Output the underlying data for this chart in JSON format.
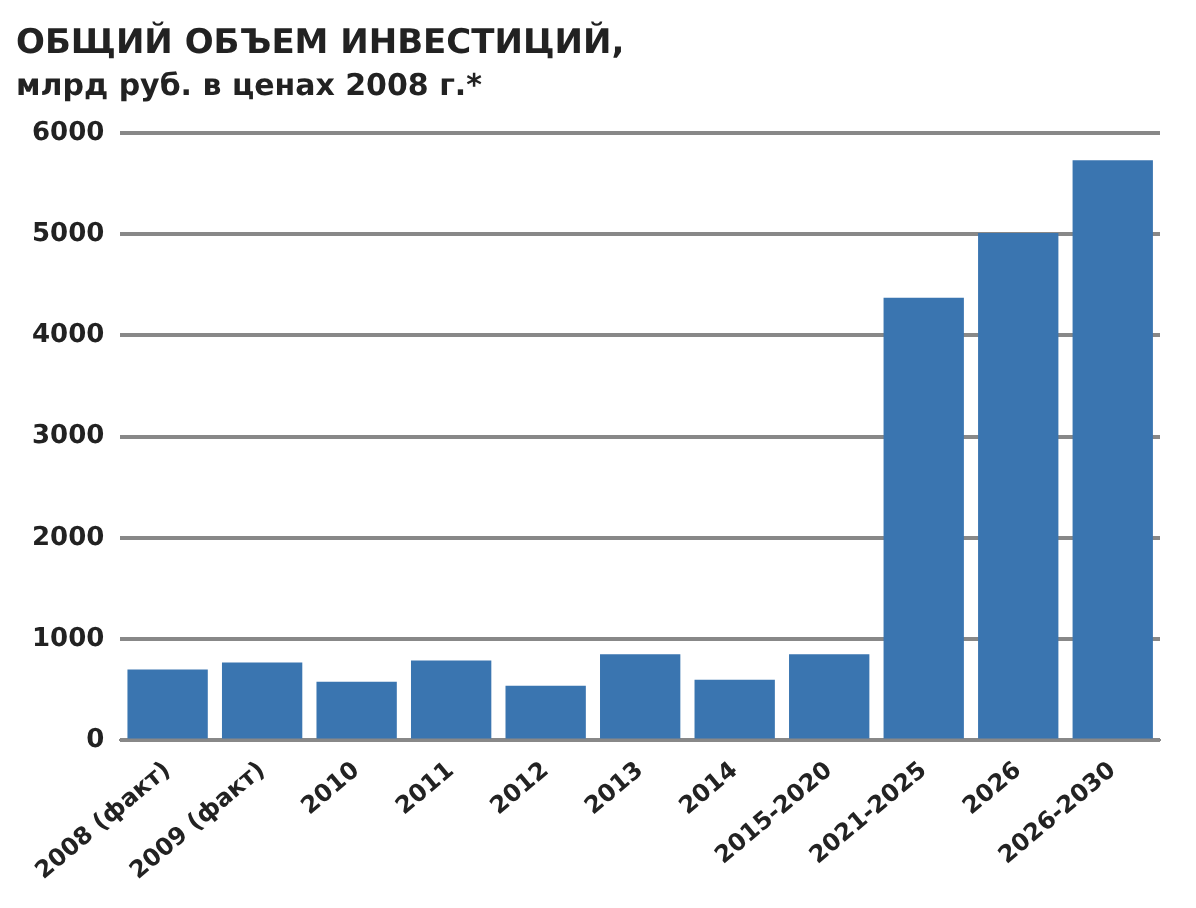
{
  "chart_data": {
    "type": "bar",
    "title": "ОБЩИЙ ОБЪЕМ ИНВЕСТИЦИЙ,",
    "subtitle": "млрд руб. в ценах 2008 г.*",
    "categories": [
      "2008 (факт)",
      "2009 (факт)",
      "2010",
      "2011",
      "2012",
      "2013",
      "2014",
      "2015-2020",
      "2021-2025",
      "2026",
      "2026-2030"
    ],
    "values": [
      700,
      770,
      580,
      790,
      540,
      850,
      600,
      850,
      4370,
      5010,
      5730
    ],
    "color": "#3a75b0",
    "ylim": [
      0,
      6000
    ],
    "yticks": [
      0,
      1000,
      2000,
      3000,
      4000,
      5000,
      6000
    ],
    "grid": "y",
    "legend": false
  }
}
